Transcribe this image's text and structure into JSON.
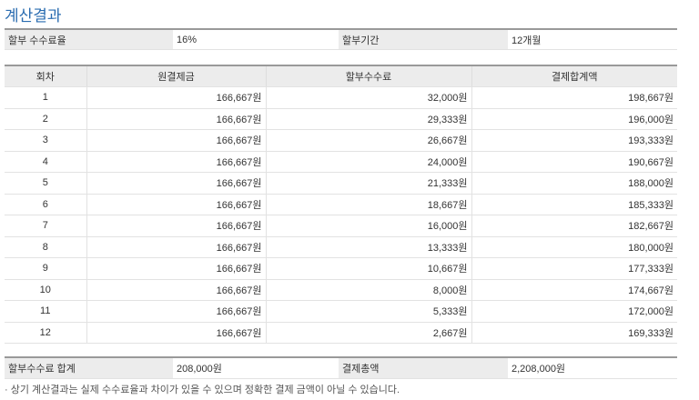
{
  "title": "계산결과",
  "info": {
    "rate_label": "할부 수수료율",
    "rate_value": "16%",
    "period_label": "할부기간",
    "period_value": "12개월"
  },
  "table": {
    "headers": [
      "회차",
      "원결제금",
      "할부수수료",
      "결제합계액"
    ],
    "rows": [
      [
        "1",
        "166,667원",
        "32,000원",
        "198,667원"
      ],
      [
        "2",
        "166,667원",
        "29,333원",
        "196,000원"
      ],
      [
        "3",
        "166,667원",
        "26,667원",
        "193,333원"
      ],
      [
        "4",
        "166,667원",
        "24,000원",
        "190,667원"
      ],
      [
        "5",
        "166,667원",
        "21,333원",
        "188,000원"
      ],
      [
        "6",
        "166,667원",
        "18,667원",
        "185,333원"
      ],
      [
        "7",
        "166,667원",
        "16,000원",
        "182,667원"
      ],
      [
        "8",
        "166,667원",
        "13,333원",
        "180,000원"
      ],
      [
        "9",
        "166,667원",
        "10,667원",
        "177,333원"
      ],
      [
        "10",
        "166,667원",
        "8,000원",
        "174,667원"
      ],
      [
        "11",
        "166,667원",
        "5,333원",
        "172,000원"
      ],
      [
        "12",
        "166,667원",
        "2,667원",
        "169,333원"
      ]
    ]
  },
  "summary": {
    "fee_total_label": "할부수수료 합계",
    "fee_total_value": "208,000원",
    "grand_total_label": "결제총액",
    "grand_total_value": "2,208,000원"
  },
  "note": "· 상기 계산결과는 실제 수수료율과 차이가 있을 수 있으며 정확한 결제 금액이 아닐 수 있습니다."
}
